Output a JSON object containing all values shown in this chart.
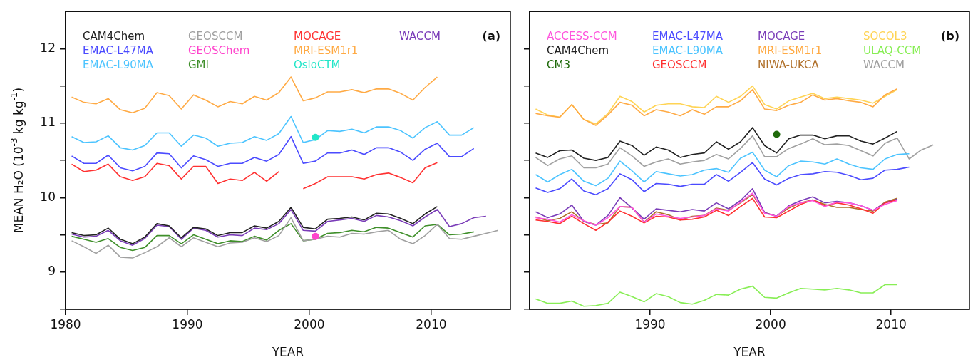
{
  "chart_data": [
    {
      "type": "line",
      "xlabel": "YEAR",
      "ylabel": "MEAN H₂O (10$^{-3}$ kg kg$^{-1}$)",
      "annotations": [
        "(a)"
      ],
      "x": [
        1980.5,
        1981.5,
        1982.5,
        1983.5,
        1984.5,
        1985.5,
        1986.5,
        1987.5,
        1988.5,
        1989.5,
        1990.5,
        1991.5,
        1992.5,
        1993.5,
        1994.5,
        1995.5,
        1996.5,
        1997.5,
        1998.5,
        1999.5,
        2000.5,
        2001.5,
        2002.5,
        2003.5,
        2004.5,
        2005.5,
        2006.5,
        2007.5,
        2008.5,
        2009.5,
        2010.5,
        2011.5,
        2012.5,
        2013.5,
        2014.5,
        2015.5
      ],
      "xlim": [
        1980,
        2016.5
      ],
      "xticks": [
        1980,
        1990,
        2000,
        2010
      ],
      "ylim": [
        8.5,
        12.5
      ],
      "yticks": [
        {
          "value": 8.5,
          "label": null
        },
        9,
        {
          "value": 9.5,
          "label": null
        },
        10,
        {
          "value": 10.5,
          "label": null
        },
        11,
        {
          "value": 11.5,
          "label": null
        },
        12
      ],
      "grid": false,
      "legend": "top left",
      "marker": "none",
      "line_style": "solid",
      "series": [
        {
          "name": "CAM4Chem",
          "color": "#222222",
          "values": [
            9.53,
            9.49,
            9.5,
            9.59,
            9.44,
            9.38,
            9.47,
            9.65,
            9.62,
            9.46,
            9.6,
            9.58,
            9.49,
            9.53,
            9.53,
            9.62,
            9.59,
            9.68,
            9.87,
            9.6,
            9.58,
            9.71,
            9.72,
            9.74,
            9.7,
            9.79,
            9.78,
            9.72,
            9.65,
            9.78,
            9.88,
            null,
            null,
            null,
            null,
            null
          ]
        },
        {
          "name": "EMAC-L47MA",
          "color": "#4b4bff",
          "values": [
            10.56,
            10.46,
            10.46,
            10.57,
            10.4,
            10.36,
            10.42,
            10.6,
            10.59,
            10.4,
            10.56,
            10.51,
            10.42,
            10.46,
            10.46,
            10.54,
            10.49,
            10.58,
            10.82,
            10.46,
            10.49,
            10.6,
            10.6,
            10.64,
            10.58,
            10.67,
            10.67,
            10.61,
            10.5,
            10.65,
            10.73,
            10.55,
            10.55,
            10.66,
            null,
            null
          ]
        },
        {
          "name": "EMAC-L90MA",
          "color": "#4cc4ff",
          "values": [
            10.82,
            10.74,
            10.75,
            10.83,
            10.67,
            10.64,
            10.7,
            10.87,
            10.87,
            10.69,
            10.84,
            10.8,
            10.69,
            10.73,
            10.74,
            10.82,
            10.77,
            10.86,
            11.09,
            10.74,
            10.78,
            10.9,
            10.89,
            10.92,
            10.87,
            10.95,
            10.95,
            10.9,
            10.8,
            10.94,
            11.02,
            10.84,
            10.84,
            10.94,
            null,
            null
          ]
        },
        {
          "name": "GEOSCCM",
          "color": "#a0a0a0",
          "values": [
            9.42,
            9.34,
            9.25,
            9.36,
            9.2,
            9.19,
            9.26,
            9.34,
            9.46,
            9.34,
            9.46,
            9.4,
            9.34,
            9.39,
            9.4,
            9.46,
            9.41,
            9.49,
            9.73,
            9.42,
            9.44,
            9.48,
            9.47,
            9.52,
            9.51,
            9.54,
            9.56,
            9.44,
            9.38,
            9.49,
            9.64,
            9.45,
            9.44,
            9.48,
            9.52,
            9.56
          ]
        },
        {
          "name": "GEOSChem",
          "type": "scatter",
          "marker": "circle",
          "color": "#ff44cc",
          "values": [
            null,
            null,
            null,
            null,
            null,
            null,
            null,
            null,
            null,
            null,
            null,
            null,
            null,
            null,
            null,
            null,
            null,
            null,
            null,
            null,
            9.48,
            null,
            null,
            null,
            null,
            null,
            null,
            null,
            null,
            null,
            null,
            null,
            null,
            null,
            null,
            null
          ]
        },
        {
          "name": "GMI",
          "color": "#3f8f2a",
          "values": [
            9.48,
            9.44,
            9.4,
            9.45,
            9.33,
            9.29,
            9.33,
            9.49,
            9.49,
            9.38,
            9.5,
            9.44,
            9.38,
            9.42,
            9.41,
            9.48,
            9.43,
            9.56,
            9.65,
            9.42,
            9.44,
            9.52,
            9.53,
            9.56,
            9.54,
            9.6,
            9.59,
            9.53,
            9.47,
            9.62,
            9.64,
            9.5,
            9.51,
            9.54,
            null,
            null
          ]
        },
        {
          "name": "MOCAGE",
          "color": "#ff3030",
          "values": [
            10.45,
            10.35,
            10.37,
            10.45,
            10.28,
            10.23,
            10.28,
            10.46,
            10.43,
            10.25,
            10.42,
            10.42,
            10.19,
            10.25,
            10.23,
            10.34,
            10.22,
            10.35,
            null,
            10.12,
            10.19,
            10.28,
            10.28,
            10.28,
            10.25,
            10.31,
            10.33,
            10.27,
            10.2,
            10.4,
            10.47,
            null,
            null,
            null,
            null,
            null
          ]
        },
        {
          "name": "MRI-ESM1r1",
          "color": "#ffaa44",
          "values": [
            11.35,
            11.28,
            11.26,
            11.33,
            11.18,
            11.14,
            11.2,
            11.41,
            11.37,
            11.19,
            11.38,
            11.31,
            11.22,
            11.29,
            11.26,
            11.36,
            11.31,
            11.41,
            11.62,
            11.3,
            11.34,
            11.42,
            11.42,
            11.45,
            11.41,
            11.46,
            11.46,
            11.4,
            11.31,
            11.48,
            11.62,
            null,
            null,
            null,
            null,
            null
          ]
        },
        {
          "name": "OsloCTM",
          "type": "scatter",
          "marker": "circle",
          "color": "#22e6c8",
          "values": [
            null,
            null,
            null,
            null,
            null,
            null,
            null,
            null,
            null,
            null,
            null,
            null,
            null,
            null,
            null,
            null,
            null,
            null,
            null,
            null,
            10.81,
            null,
            null,
            null,
            null,
            null,
            null,
            null,
            null,
            null,
            null,
            null,
            null,
            null,
            null,
            null
          ]
        },
        {
          "name": "WACCM",
          "color": "#7a3cb8",
          "values": [
            9.51,
            9.47,
            9.48,
            9.56,
            9.42,
            9.36,
            9.45,
            9.63,
            9.61,
            9.44,
            9.59,
            9.56,
            9.47,
            9.5,
            9.49,
            9.59,
            9.57,
            9.65,
            9.84,
            9.56,
            9.55,
            9.68,
            9.7,
            9.72,
            9.68,
            9.76,
            9.74,
            9.69,
            9.62,
            9.74,
            9.84,
            9.61,
            9.65,
            9.73,
            9.75,
            null
          ]
        }
      ]
    },
    {
      "type": "line",
      "xlabel": "YEAR",
      "annotations": [
        "(b)"
      ],
      "x": [
        1980.5,
        1981.5,
        1982.5,
        1983.5,
        1984.5,
        1985.5,
        1986.5,
        1987.5,
        1988.5,
        1989.5,
        1990.5,
        1991.5,
        1992.5,
        1993.5,
        1994.5,
        1995.5,
        1996.5,
        1997.5,
        1998.5,
        1999.5,
        2000.5,
        2001.5,
        2002.5,
        2003.5,
        2004.5,
        2005.5,
        2006.5,
        2007.5,
        2008.5,
        2009.5,
        2010.5,
        2011.5,
        2012.5,
        2013.5
      ],
      "xlim": [
        1980,
        2016.5
      ],
      "xticks": [
        1990,
        2000,
        2010
      ],
      "ylim": [
        8.5,
        12.5
      ],
      "yticks": [
        {
          "value": 8.5,
          "label": null
        },
        9,
        {
          "value": 9.5,
          "label": null
        },
        10,
        {
          "value": 10.5,
          "label": null
        },
        11,
        {
          "value": 11.5,
          "label": null
        },
        12
      ],
      "tick_labels": "x",
      "grid": false,
      "legend": "top left",
      "marker": "none",
      "line_style": "solid",
      "series": [
        {
          "name": "ACCESS-CCM",
          "color": "#ff55dd",
          "values": [
            9.73,
            9.71,
            9.67,
            9.77,
            9.69,
            9.63,
            9.73,
            9.88,
            9.87,
            9.67,
            9.78,
            9.75,
            9.72,
            9.74,
            9.76,
            9.85,
            9.82,
            9.94,
            10.06,
            9.79,
            9.75,
            9.88,
            9.93,
            9.96,
            9.88,
            9.94,
            9.93,
            9.89,
            9.83,
            9.91,
            9.96,
            null,
            null,
            null
          ]
        },
        {
          "name": "CAM4Chem",
          "color": "#222222",
          "values": [
            10.6,
            10.54,
            10.63,
            10.64,
            10.53,
            10.5,
            10.54,
            10.76,
            10.7,
            10.57,
            10.68,
            10.64,
            10.54,
            10.58,
            10.6,
            10.75,
            10.65,
            10.75,
            10.94,
            10.7,
            10.6,
            10.79,
            10.84,
            10.84,
            10.79,
            10.83,
            10.83,
            10.76,
            10.72,
            10.8,
            10.89,
            null,
            null,
            null
          ]
        },
        {
          "name": "CM3",
          "type": "scatter",
          "marker": "circle",
          "color": "#1f6a0a",
          "values": [
            null,
            null,
            null,
            null,
            null,
            null,
            null,
            null,
            null,
            null,
            null,
            null,
            null,
            null,
            null,
            null,
            null,
            null,
            null,
            null,
            10.85,
            null,
            null,
            null,
            null,
            null,
            null,
            null,
            null,
            null,
            null,
            null,
            null,
            null
          ]
        },
        {
          "name": "EMAC-L47MA",
          "color": "#4b4bff",
          "values": [
            10.13,
            10.07,
            10.12,
            10.25,
            10.09,
            10.04,
            10.12,
            10.32,
            10.24,
            10.08,
            10.19,
            10.18,
            10.15,
            10.18,
            10.18,
            10.31,
            10.22,
            10.34,
            10.47,
            10.25,
            10.17,
            10.26,
            10.31,
            10.32,
            10.35,
            10.34,
            10.3,
            10.24,
            10.26,
            10.37,
            10.38,
            10.41,
            null,
            null
          ]
        },
        {
          "name": "EMAC-L90MA",
          "color": "#4cc4ff",
          "values": [
            10.31,
            10.21,
            10.31,
            10.38,
            10.22,
            10.16,
            10.26,
            10.49,
            10.36,
            10.21,
            10.35,
            10.32,
            10.29,
            10.31,
            10.37,
            10.39,
            10.34,
            10.53,
            10.61,
            10.37,
            10.28,
            10.43,
            10.49,
            10.48,
            10.45,
            10.52,
            10.45,
            10.4,
            10.38,
            10.52,
            10.58,
            10.59,
            null,
            null
          ]
        },
        {
          "name": "GEOSCCM",
          "color": "#ff3030",
          "values": [
            9.7,
            9.68,
            9.65,
            9.75,
            9.65,
            9.56,
            9.67,
            9.82,
            9.75,
            9.66,
            9.75,
            9.74,
            9.7,
            9.71,
            9.74,
            9.83,
            9.76,
            9.88,
            9.99,
            9.74,
            9.73,
            9.82,
            9.91,
            9.97,
            9.89,
            9.93,
            9.9,
            9.85,
            9.79,
            9.93,
            9.97,
            null,
            null,
            null
          ]
        },
        {
          "name": "MOCAGE",
          "color": "#7a3cb8",
          "values": [
            9.81,
            9.73,
            9.78,
            9.9,
            9.68,
            9.63,
            9.76,
            10.0,
            9.86,
            9.71,
            9.85,
            9.83,
            9.81,
            9.84,
            9.82,
            9.93,
            9.85,
            9.96,
            10.12,
            9.8,
            9.75,
            9.89,
            9.96,
            10.01,
            9.93,
            9.95,
            9.93,
            9.89,
            9.83,
            9.93,
            9.98,
            null,
            null,
            null
          ]
        },
        {
          "name": "MRI-ESM1r1",
          "color": "#ffaa44",
          "values": [
            11.13,
            11.1,
            11.08,
            11.25,
            11.05,
            10.97,
            11.11,
            11.28,
            11.24,
            11.1,
            11.18,
            11.15,
            11.1,
            11.18,
            11.12,
            11.22,
            11.22,
            11.3,
            11.45,
            11.19,
            11.17,
            11.24,
            11.28,
            11.38,
            11.31,
            11.33,
            11.3,
            11.28,
            11.22,
            11.38,
            11.46,
            null,
            null,
            null
          ]
        },
        {
          "name": "NIWA-UKCA",
          "color": "#b0702a",
          "values": [
            9.74,
            9.69,
            9.72,
            9.81,
            9.68,
            9.64,
            9.66,
            9.88,
            9.87,
            9.67,
            9.81,
            9.77,
            9.7,
            9.75,
            9.76,
            9.86,
            9.83,
            9.93,
            10.04,
            9.8,
            9.75,
            9.86,
            9.93,
            9.97,
            9.91,
            9.87,
            9.87,
            9.84,
            9.82,
            9.94,
            9.99,
            null,
            null,
            null
          ]
        },
        {
          "name": "SOCOL3",
          "color": "#ffd455",
          "values": [
            11.19,
            11.11,
            11.08,
            11.25,
            11.05,
            10.99,
            11.13,
            11.36,
            11.29,
            11.15,
            11.24,
            11.26,
            11.26,
            11.22,
            11.21,
            11.36,
            11.28,
            11.36,
            11.5,
            11.25,
            11.19,
            11.3,
            11.35,
            11.4,
            11.33,
            11.35,
            11.33,
            11.31,
            11.27,
            11.36,
            11.45,
            null,
            null,
            null
          ]
        },
        {
          "name": "ULAQ-CCM",
          "color": "#88ee55",
          "values": [
            8.64,
            8.58,
            8.58,
            8.61,
            8.54,
            8.55,
            8.58,
            8.73,
            8.67,
            8.6,
            8.71,
            8.67,
            8.59,
            8.57,
            8.62,
            8.7,
            8.69,
            8.77,
            8.81,
            8.66,
            8.65,
            8.72,
            8.78,
            8.77,
            8.76,
            8.78,
            8.76,
            8.72,
            8.72,
            8.83,
            8.83,
            null,
            null,
            null
          ]
        },
        {
          "name": "WACCM",
          "color": "#a0a0a0",
          "values": [
            10.54,
            10.43,
            10.52,
            10.56,
            10.4,
            10.4,
            10.45,
            10.67,
            10.56,
            10.42,
            10.48,
            10.52,
            10.45,
            10.48,
            10.5,
            10.58,
            10.52,
            10.66,
            10.83,
            10.55,
            10.55,
            10.66,
            10.72,
            10.79,
            10.71,
            10.72,
            10.7,
            10.63,
            10.56,
            10.73,
            10.8,
            10.52,
            10.64,
            10.71
          ]
        }
      ]
    }
  ]
}
